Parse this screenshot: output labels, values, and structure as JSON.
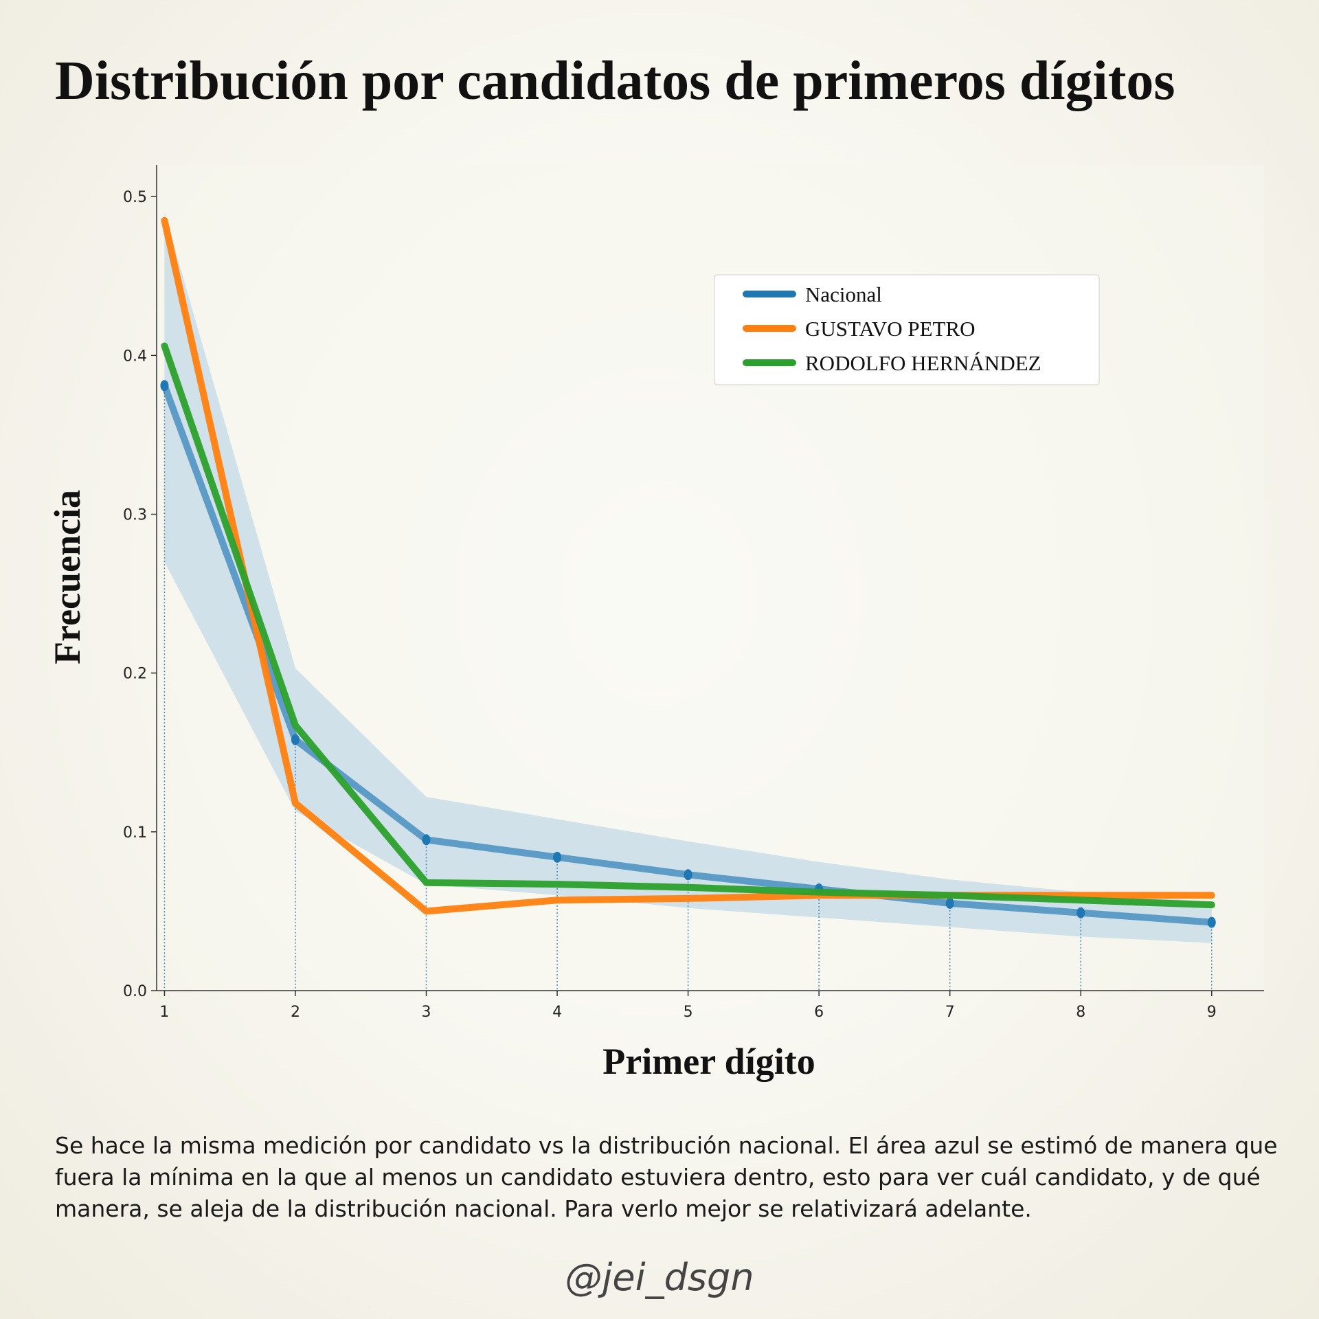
{
  "title": "Distribución por candidatos de primeros dígitos",
  "caption": "Se hace la misma medición por candidato vs la distribución nacional. El área azul se estimó de manera que fuera la mínima en la que al menos un candidato estuviera dentro, esto para ver cuál candidato, y de qué manera, se aleja de la distribución nacional. Para verlo mejor se relativizará adelante.",
  "credit": "@jei_dsgn",
  "chart_data": {
    "type": "line",
    "xlabel": "Primer dígito",
    "ylabel": "Frecuencia",
    "x": [
      1,
      2,
      3,
      4,
      5,
      6,
      7,
      8,
      9
    ],
    "xticks": [
      "1",
      "2",
      "3",
      "4",
      "5",
      "6",
      "7",
      "8",
      "9"
    ],
    "yticks": [
      "0.0",
      "0.1",
      "0.2",
      "0.3",
      "0.4",
      "0.5"
    ],
    "ylim": [
      0,
      0.52
    ],
    "xlim": [
      0.94,
      9.4
    ],
    "grid": false,
    "legend_position": "upper-right",
    "band": {
      "color": "#cfdfe8",
      "upper": [
        0.49,
        0.203,
        0.122,
        0.108,
        0.094,
        0.081,
        0.07,
        0.062,
        0.056
      ],
      "lower": [
        0.27,
        0.113,
        0.067,
        0.06,
        0.052,
        0.046,
        0.04,
        0.034,
        0.03
      ]
    },
    "series": [
      {
        "name": "Nacional",
        "color": "#1f77b4",
        "values": [
          0.381,
          0.158,
          0.095,
          0.084,
          0.073,
          0.064,
          0.055,
          0.049,
          0.043
        ],
        "markers": true
      },
      {
        "name": "GUSTAVO PETRO",
        "color": "#ff7f0e",
        "values": [
          0.485,
          0.118,
          0.05,
          0.057,
          0.058,
          0.06,
          0.06,
          0.06,
          0.06
        ],
        "markers": false
      },
      {
        "name": "RODOLFO HERNÁNDEZ",
        "color": "#2ca02c",
        "values": [
          0.406,
          0.167,
          0.068,
          0.067,
          0.065,
          0.062,
          0.06,
          0.057,
          0.054
        ],
        "markers": false
      }
    ]
  }
}
